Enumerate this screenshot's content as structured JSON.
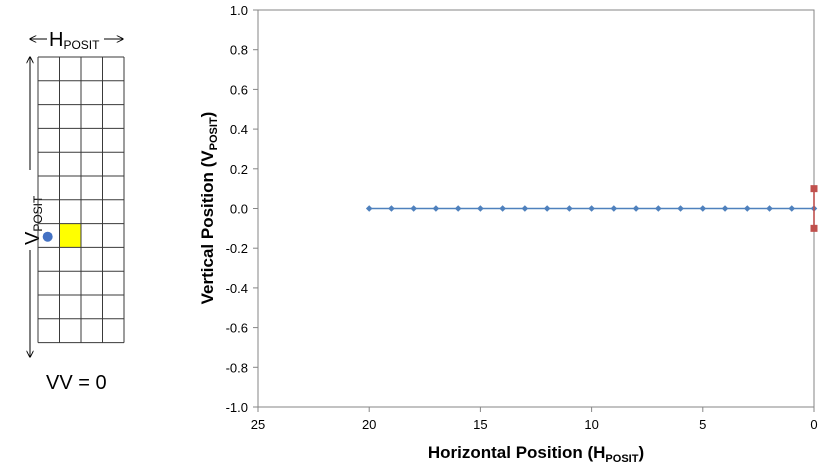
{
  "diagram": {
    "h_label": {
      "main": "H",
      "sub": "POSIT"
    },
    "v_label": {
      "main": "V",
      "sub": "POSIT"
    },
    "caption": "VV = 0",
    "grid_cols": 4,
    "grid_rows": 12,
    "highlight_cell": {
      "col": 1,
      "row": 7
    },
    "dot_position": {
      "col": 0,
      "row": 7
    },
    "colors": {
      "grid": "#3a3a3a",
      "highlight": "#ffff00",
      "dot": "#4472c4"
    }
  },
  "chart_data": {
    "type": "scatter",
    "xlabel": {
      "main": "Horizontal Position (H",
      "sub": "POSIT",
      "end": ")"
    },
    "ylabel": {
      "main": "Vertical Position (V",
      "sub": "POSIT",
      "end": ")"
    },
    "xlim": [
      25,
      0
    ],
    "x_reversed": true,
    "ylim": [
      -1.0,
      1.0
    ],
    "xticks": [
      25,
      20,
      15,
      10,
      5,
      0
    ],
    "yticks": [
      1.0,
      0.8,
      0.6,
      0.4,
      0.2,
      0.0,
      -0.2,
      -0.4,
      -0.6,
      -0.8,
      -1.0
    ],
    "grid": false,
    "series": [
      {
        "color": "#4f81bd",
        "marker": "diamond",
        "x": [
          20,
          19,
          18,
          17,
          16,
          15,
          14,
          13,
          12,
          11,
          10,
          9,
          8,
          7,
          6,
          5,
          4,
          3,
          2,
          1,
          0
        ],
        "y": [
          0,
          0,
          0,
          0,
          0,
          0,
          0,
          0,
          0,
          0,
          0,
          0,
          0,
          0,
          0,
          0,
          0,
          0,
          0,
          0,
          0
        ]
      },
      {
        "color": "#c0504d",
        "marker": "square",
        "x": [
          0,
          0
        ],
        "y": [
          0.1,
          -0.1
        ]
      }
    ]
  }
}
